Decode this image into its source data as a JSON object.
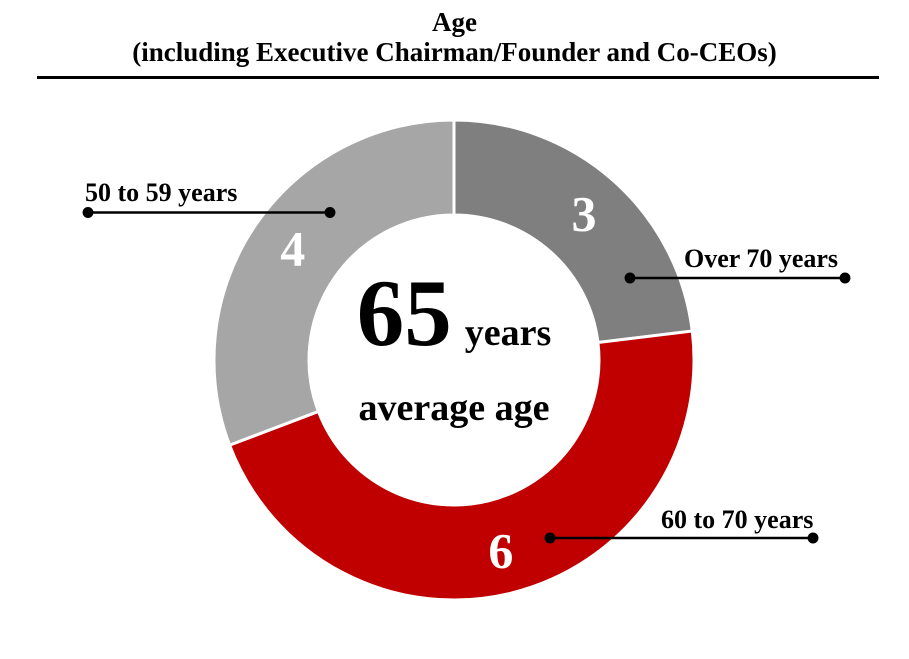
{
  "title": {
    "line1": "Age",
    "line2": "(including Executive Chairman/Founder and Co-CEOs)"
  },
  "chart_data": {
    "type": "pie",
    "subtype": "donut",
    "title": "Age (including Executive Chairman/Founder and Co-CEOs)",
    "series": [
      {
        "label": "Over 70 years",
        "value": 3,
        "color": "#7F7F7F"
      },
      {
        "label": "60 to 70 years",
        "value": 6,
        "color": "#C00000"
      },
      {
        "label": "50 to 59 years",
        "value": 4,
        "color": "#A6A6A6"
      }
    ],
    "total": 13,
    "start_angle_deg": 0,
    "direction": "clockwise",
    "separator_color": "#FFFFFF",
    "value_label_color": "#FFFFFF",
    "center": {
      "value": "65",
      "unit": "years",
      "caption": "average age"
    }
  },
  "colors": {
    "accent_red": "#C00000",
    "dark_gray": "#7F7F7F",
    "light_gray": "#A6A6A6",
    "text": "#000000",
    "line": "#000000"
  }
}
